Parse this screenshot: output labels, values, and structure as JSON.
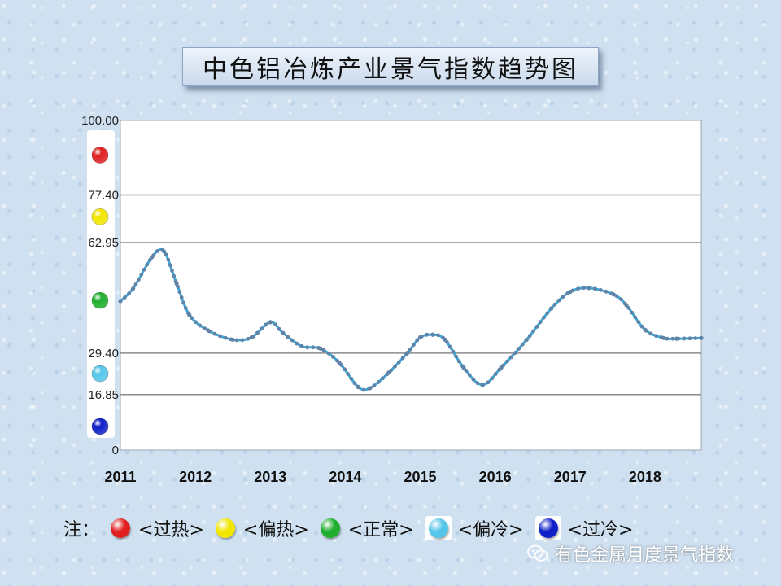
{
  "title": "中色铝冶炼产业景气指数趋势图",
  "chart_data": {
    "type": "line",
    "title": "中色铝冶炼产业景气指数趋势图",
    "ylim": [
      0,
      100
    ],
    "y_ticks": [
      {
        "value": 0,
        "label": "0"
      },
      {
        "value": 16.85,
        "label": "16.85"
      },
      {
        "value": 29.4,
        "label": "29.40"
      },
      {
        "value": 62.95,
        "label": "62.95"
      },
      {
        "value": 77.4,
        "label": "77.40"
      },
      {
        "value": 100,
        "label": "100.00"
      }
    ],
    "gridlines": [
      16.85,
      29.4,
      62.95,
      77.4,
      100
    ],
    "xlim": [
      2011.0,
      2018.75
    ],
    "x_ticks": [
      2011,
      2012,
      2013,
      2014,
      2015,
      2016,
      2017,
      2018
    ],
    "x_tick_labels": [
      "2011",
      "2012",
      "2013",
      "2014",
      "2015",
      "2016",
      "2017",
      "2018"
    ],
    "line_color": "#3aa8d8",
    "marker_color": "#5f84a8",
    "zone_markers": [
      {
        "zone": "过热",
        "value": 89.5,
        "color": "#e02020"
      },
      {
        "zone": "偏热",
        "value": 70.8,
        "color": "#f2e600"
      },
      {
        "zone": "正常",
        "value": 45.4,
        "color": "#1fae2e"
      },
      {
        "zone": "偏冷",
        "value": 23.2,
        "color": "#55c6ea"
      },
      {
        "zone": "过冷",
        "value": 7.2,
        "color": "#1020c8"
      }
    ],
    "series": [
      {
        "points": [
          [
            2011.0,
            45.2
          ],
          [
            2011.17,
            49.0
          ],
          [
            2011.42,
            58.5
          ],
          [
            2011.58,
            60.3
          ],
          [
            2011.75,
            50.5
          ],
          [
            2011.92,
            41.0
          ],
          [
            2012.17,
            36.3
          ],
          [
            2012.5,
            33.5
          ],
          [
            2012.75,
            34.2
          ],
          [
            2013.0,
            38.8
          ],
          [
            2013.17,
            35.5
          ],
          [
            2013.42,
            31.5
          ],
          [
            2013.67,
            30.8
          ],
          [
            2013.92,
            26.5
          ],
          [
            2014.17,
            19.2
          ],
          [
            2014.33,
            18.8
          ],
          [
            2014.58,
            23.5
          ],
          [
            2014.83,
            29.5
          ],
          [
            2015.0,
            34.2
          ],
          [
            2015.17,
            35.0
          ],
          [
            2015.33,
            33.5
          ],
          [
            2015.58,
            25.0
          ],
          [
            2015.83,
            19.8
          ],
          [
            2016.08,
            25.0
          ],
          [
            2016.42,
            33.5
          ],
          [
            2016.75,
            43.0
          ],
          [
            2017.0,
            48.0
          ],
          [
            2017.25,
            49.2
          ],
          [
            2017.58,
            47.2
          ],
          [
            2017.75,
            44.0
          ],
          [
            2018.0,
            36.5
          ],
          [
            2018.25,
            34.0
          ],
          [
            2018.42,
            33.8
          ],
          [
            2018.75,
            34.0
          ]
        ]
      }
    ]
  },
  "legend": {
    "prefix": "注：",
    "items": [
      {
        "label": "<过热>",
        "color": "#e02020"
      },
      {
        "label": "<偏热>",
        "color": "#f2e600"
      },
      {
        "label": "<正常>",
        "color": "#1fae2e"
      },
      {
        "label": "<偏冷>",
        "color": "#55c6ea"
      },
      {
        "label": "<过冷>",
        "color": "#1020c8"
      }
    ]
  },
  "watermark": {
    "icon": "wechat-icon",
    "text": "有色金属月度景气指数"
  }
}
